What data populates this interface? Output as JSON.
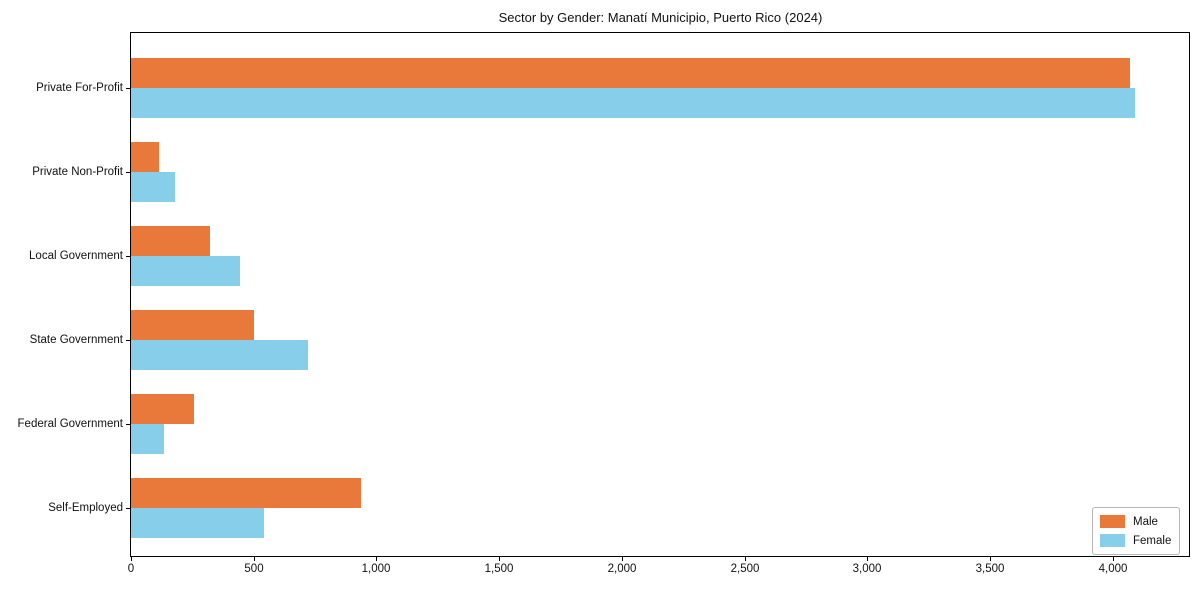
{
  "chart_data": {
    "type": "bar",
    "orientation": "horizontal",
    "title": "Sector by Gender: Manatí Municipio, Puerto Rico (2024)",
    "categories": [
      "Private For-Profit",
      "Private Non-Profit",
      "Local Government",
      "State Government",
      "Federal Government",
      "Self-Employed"
    ],
    "series": [
      {
        "name": "Male",
        "color": "#E8793B",
        "values": [
          4070,
          115,
          320,
          500,
          255,
          935
        ]
      },
      {
        "name": "Female",
        "color": "#87CEEB",
        "values": [
          4090,
          180,
          445,
          720,
          135,
          540
        ]
      }
    ],
    "xlabel": "",
    "ylabel": "",
    "xlim": [
      0,
      4310
    ],
    "xticks": {
      "values": [
        0,
        500,
        1000,
        1500,
        2000,
        2500,
        3000,
        3500,
        4000
      ],
      "labels": [
        "0",
        "500",
        "1,000",
        "1,500",
        "2,000",
        "2,500",
        "3,000",
        "3,500",
        "4,000"
      ]
    },
    "grid": false,
    "legend": {
      "position": "lower right",
      "entries": [
        "Male",
        "Female"
      ]
    }
  }
}
